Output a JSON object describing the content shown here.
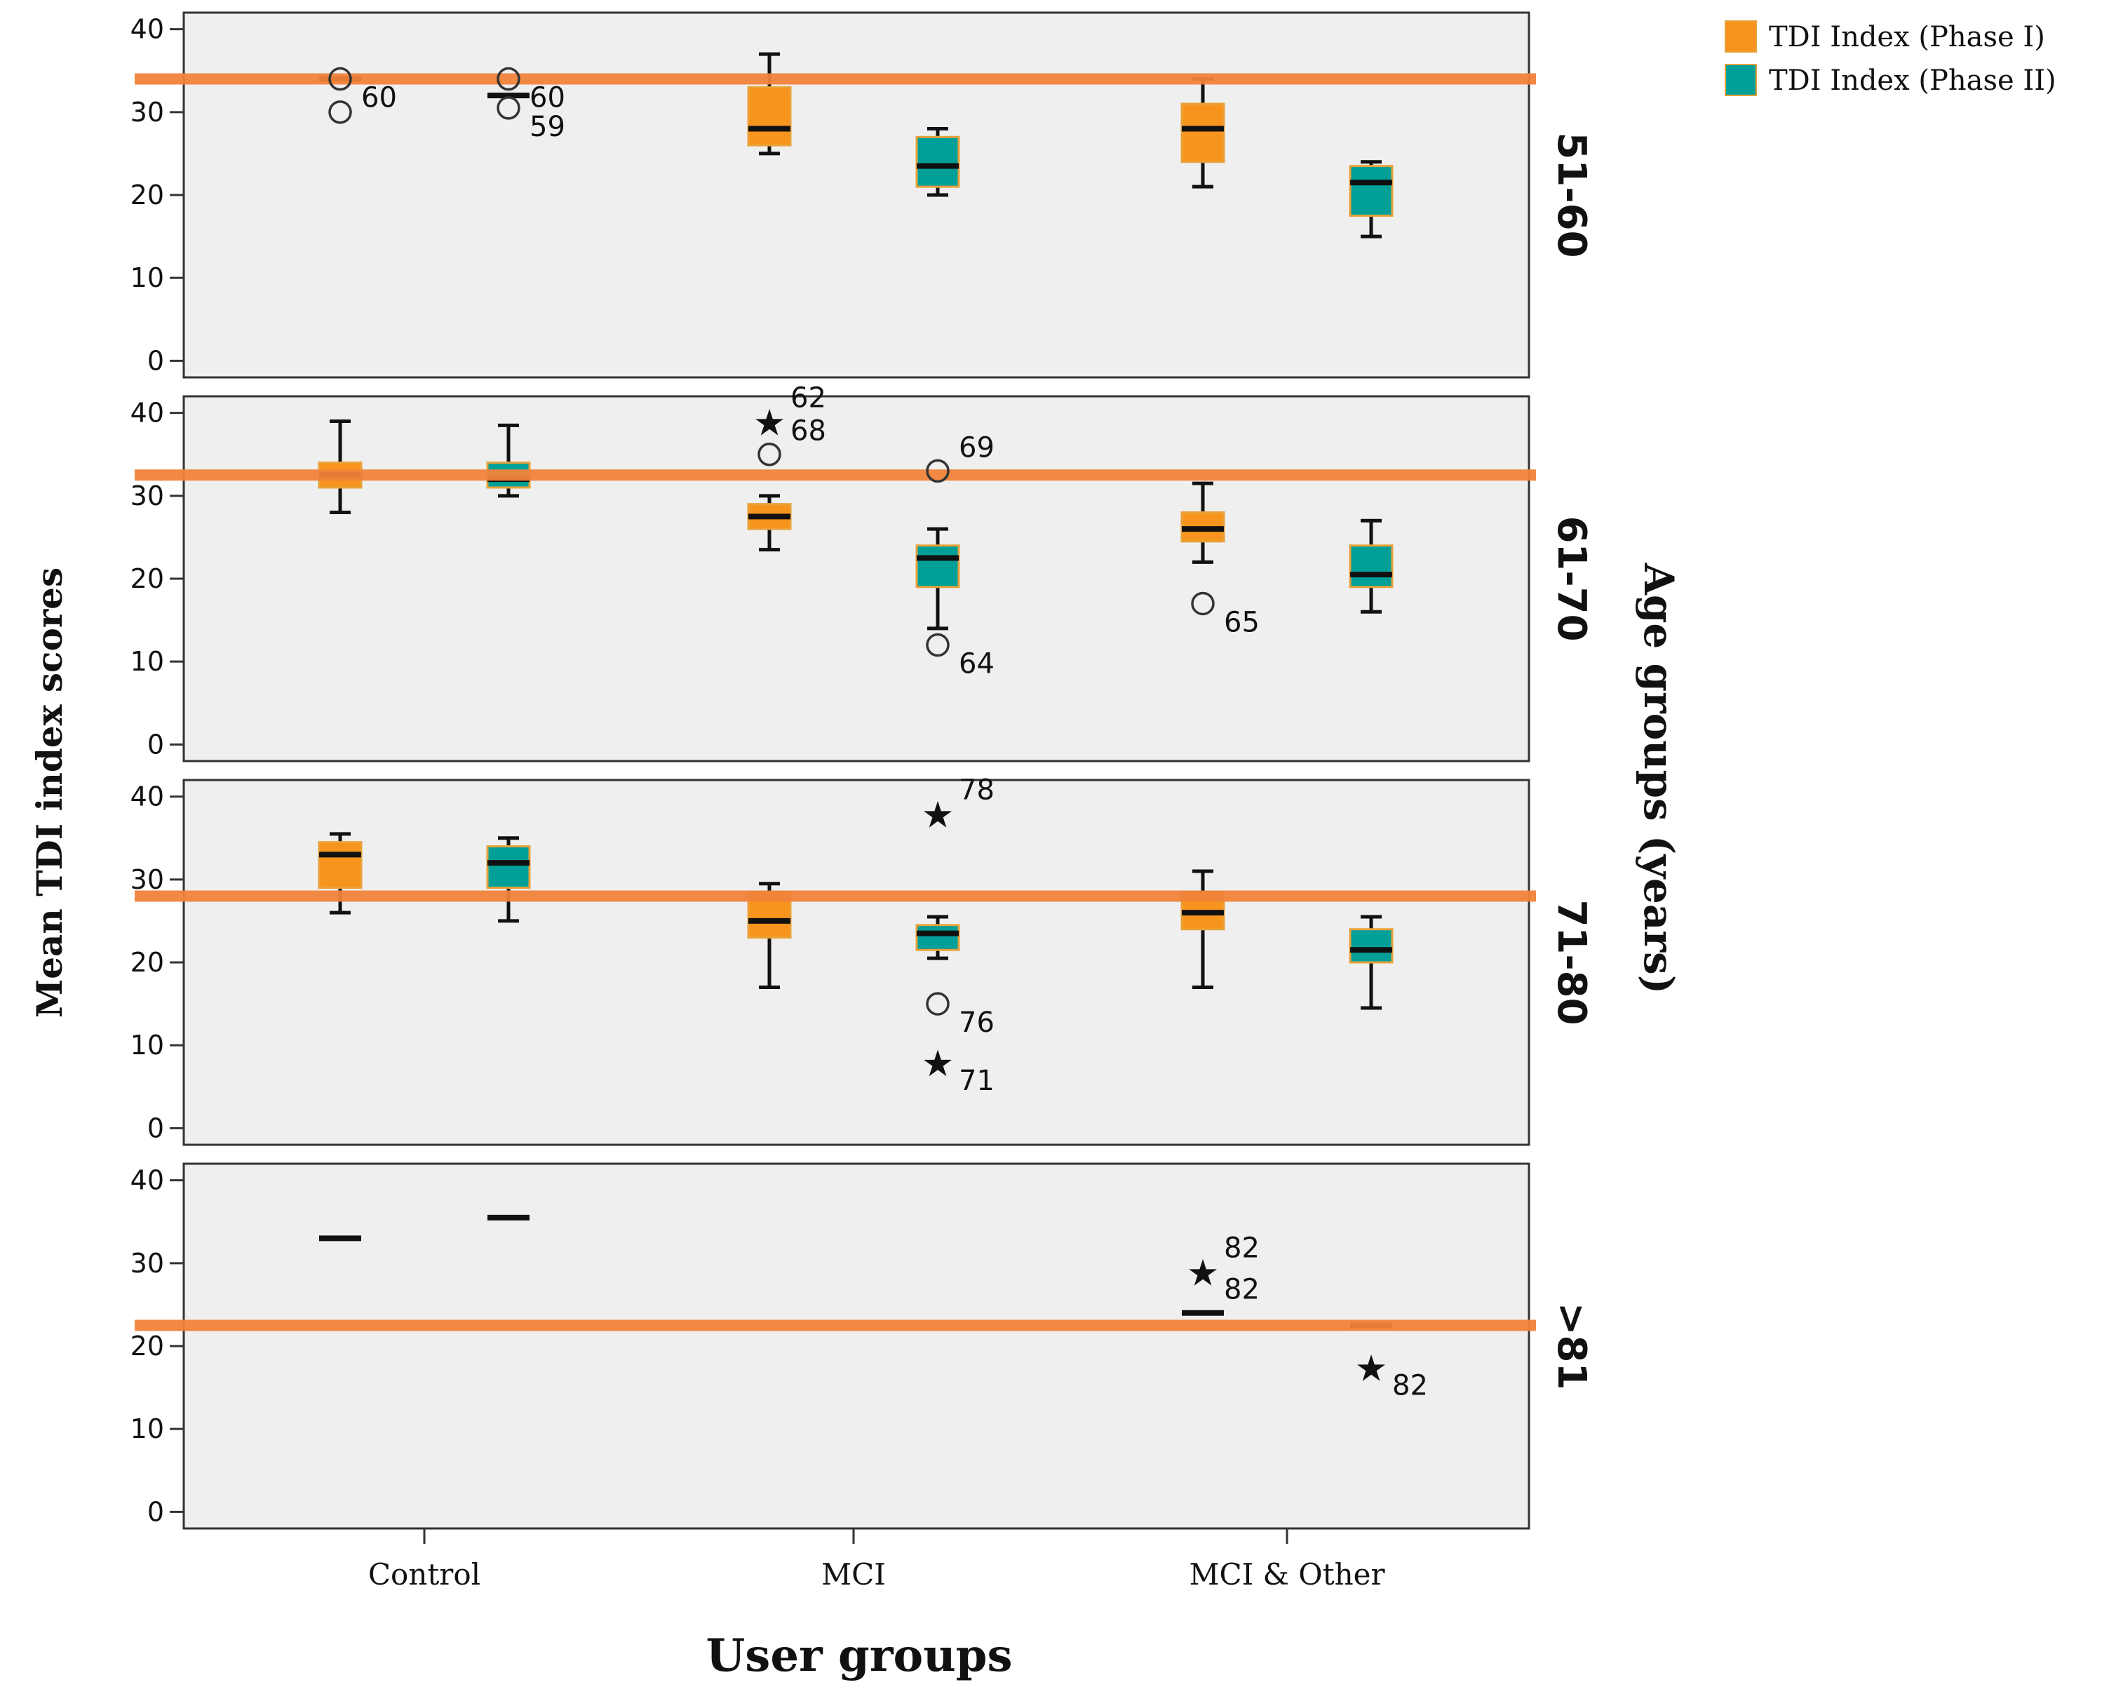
{
  "chart_data": {
    "type": "box",
    "xlabel": "User groups",
    "ylabel": "Mean TDI index scores",
    "facet_title": "Age groups (years)",
    "categories": [
      "Control",
      "MCI",
      "MCI & Other"
    ],
    "yticks": [
      0,
      10,
      20,
      30,
      40
    ],
    "ylim": [
      -2,
      42
    ],
    "legend": {
      "placement": "top-right",
      "items": [
        {
          "label": "TDI Index (Phase I)",
          "color": "#f7941d"
        },
        {
          "label": "TDI Index (Phase II)",
          "color": "#00a099"
        }
      ]
    },
    "colors": {
      "phase1": "#f7941d",
      "phase2": "#00a099",
      "box_border": "#e8a23a",
      "reference_line": "#f0833a",
      "panel_bg": "#efefef"
    },
    "panels": [
      {
        "age_group": "51-60",
        "reference_line": 34,
        "boxes": [
          {
            "category": "Control",
            "phase": "I",
            "min": 34,
            "q1": 34,
            "median": 34,
            "q3": 34,
            "max": 34
          },
          {
            "category": "Control",
            "phase": "II",
            "min": 32,
            "q1": 32,
            "median": 32,
            "q3": 32,
            "max": 32
          },
          {
            "category": "MCI",
            "phase": "I",
            "min": 25,
            "q1": 26,
            "median": 28,
            "q3": 33,
            "max": 37
          },
          {
            "category": "MCI",
            "phase": "II",
            "min": 20,
            "q1": 21,
            "median": 23.5,
            "q3": 27,
            "max": 28
          },
          {
            "category": "MCI & Other",
            "phase": "I",
            "min": 21,
            "q1": 24,
            "median": 28,
            "q3": 31,
            "max": 34
          },
          {
            "category": "MCI & Other",
            "phase": "II",
            "min": 15,
            "q1": 17.5,
            "median": 21.5,
            "q3": 23.5,
            "max": 24
          }
        ],
        "outliers": [
          {
            "category": "Control",
            "phase": "I",
            "value": 30,
            "marker": "circle",
            "label": ""
          },
          {
            "category": "Control",
            "phase": "I",
            "value": 34,
            "marker": "circle",
            "label": "60"
          },
          {
            "category": "Control",
            "phase": "II",
            "value": 34,
            "marker": "circle",
            "label": "60"
          },
          {
            "category": "Control",
            "phase": "II",
            "value": 30.5,
            "marker": "circle",
            "label": "59"
          }
        ]
      },
      {
        "age_group": "61-70",
        "reference_line": 32.5,
        "boxes": [
          {
            "category": "Control",
            "phase": "I",
            "min": 28,
            "q1": 31,
            "median": 32.5,
            "q3": 34,
            "max": 39
          },
          {
            "category": "Control",
            "phase": "II",
            "min": 30,
            "q1": 31,
            "median": 32,
            "q3": 34,
            "max": 38.5
          },
          {
            "category": "MCI",
            "phase": "I",
            "min": 23.5,
            "q1": 26,
            "median": 27.5,
            "q3": 29,
            "max": 30
          },
          {
            "category": "MCI",
            "phase": "II",
            "min": 14,
            "q1": 19,
            "median": 22.5,
            "q3": 24,
            "max": 26
          },
          {
            "category": "MCI & Other",
            "phase": "I",
            "min": 22,
            "q1": 24.5,
            "median": 26,
            "q3": 28,
            "max": 31.5
          },
          {
            "category": "MCI & Other",
            "phase": "II",
            "min": 16,
            "q1": 19,
            "median": 20.5,
            "q3": 24,
            "max": 27
          }
        ],
        "outliers": [
          {
            "category": "MCI",
            "phase": "I",
            "value": 39,
            "marker": "star",
            "label": "62"
          },
          {
            "category": "MCI",
            "phase": "I",
            "value": 35,
            "marker": "circle",
            "label": "68"
          },
          {
            "category": "MCI",
            "phase": "II",
            "value": 33,
            "marker": "circle",
            "label": "69"
          },
          {
            "category": "MCI",
            "phase": "II",
            "value": 12,
            "marker": "circle",
            "label": "64"
          },
          {
            "category": "MCI & Other",
            "phase": "I",
            "value": 17,
            "marker": "circle",
            "label": "65"
          }
        ]
      },
      {
        "age_group": "71-80",
        "reference_line": 28,
        "boxes": [
          {
            "category": "Control",
            "phase": "I",
            "min": 26,
            "q1": 29,
            "median": 33,
            "q3": 34.5,
            "max": 35.5
          },
          {
            "category": "Control",
            "phase": "II",
            "min": 25,
            "q1": 29,
            "median": 32,
            "q3": 34,
            "max": 35
          },
          {
            "category": "MCI",
            "phase": "I",
            "min": 17,
            "q1": 23,
            "median": 25,
            "q3": 28.5,
            "max": 29.5
          },
          {
            "category": "MCI",
            "phase": "II",
            "min": 20.5,
            "q1": 21.5,
            "median": 23.5,
            "q3": 24.5,
            "max": 25.5
          },
          {
            "category": "MCI & Other",
            "phase": "I",
            "min": 17,
            "q1": 24,
            "median": 26,
            "q3": 28.5,
            "max": 31
          },
          {
            "category": "MCI & Other",
            "phase": "II",
            "min": 14.5,
            "q1": 20,
            "median": 21.5,
            "q3": 24,
            "max": 25.5
          }
        ],
        "outliers": [
          {
            "category": "MCI",
            "phase": "II",
            "value": 38,
            "marker": "star",
            "label": "78"
          },
          {
            "category": "MCI",
            "phase": "II",
            "value": 15,
            "marker": "circle",
            "label": "76"
          },
          {
            "category": "MCI",
            "phase": "II",
            "value": 8,
            "marker": "star",
            "label": "71"
          }
        ]
      },
      {
        "age_group": ">81",
        "reference_line": 22.5,
        "boxes": [
          {
            "category": "Control",
            "phase": "I",
            "min": 33,
            "q1": 33,
            "median": 33,
            "q3": 33,
            "max": 33
          },
          {
            "category": "Control",
            "phase": "II",
            "min": 35.5,
            "q1": 35.5,
            "median": 35.5,
            "q3": 35.5,
            "max": 35.5
          },
          {
            "category": "MCI & Other",
            "phase": "I",
            "min": 24,
            "q1": 24,
            "median": 24,
            "q3": 24,
            "max": 24
          },
          {
            "category": "MCI & Other",
            "phase": "II",
            "min": 22.5,
            "q1": 22.5,
            "median": 22.5,
            "q3": 22.5,
            "max": 22.5
          }
        ],
        "outliers": [
          {
            "category": "MCI & Other",
            "phase": "I",
            "value": 29,
            "marker": "star",
            "label": "82"
          },
          {
            "category": "MCI & Other",
            "phase": "I",
            "value": 24,
            "marker": "none",
            "label": "82"
          },
          {
            "category": "MCI & Other",
            "phase": "II",
            "value": 17.5,
            "marker": "star",
            "label": "82"
          }
        ]
      }
    ]
  }
}
